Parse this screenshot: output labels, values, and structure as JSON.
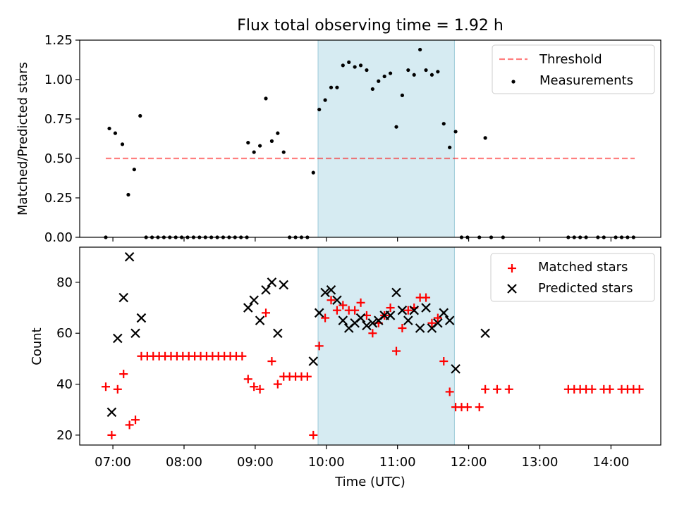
{
  "figure": {
    "title": "Flux total observing time = 1.92 h"
  },
  "chart_data": [
    {
      "type": "scatter",
      "panel": "top",
      "title": "Flux total observing time = 1.92 h",
      "ylabel": "Matched/Predicted stars",
      "xlabel": "",
      "xlim": [
        "06:32",
        "14:42"
      ],
      "ylim": [
        0,
        1.25
      ],
      "yticks": [
        0.0,
        0.25,
        0.5,
        0.75,
        1.0,
        1.25
      ],
      "ytick_labels": [
        "0.00",
        "0.25",
        "0.50",
        "0.75",
        "1.00",
        "1.25"
      ],
      "grid": false,
      "legend_position": "top-right",
      "highlight_span": {
        "x_start": "09:53",
        "x_end": "11:48",
        "color": "#add8e6"
      },
      "threshold": {
        "name": "Threshold",
        "value": 0.5,
        "x_start": "06:54",
        "x_end": "14:20",
        "color": "#ff0000",
        "style": "dashed"
      },
      "series": [
        {
          "name": "Measurements",
          "color": "#000000",
          "marker": "dot",
          "points": [
            [
              "06:54",
              0
            ],
            [
              "06:57",
              0.69
            ],
            [
              "07:02",
              0.66
            ],
            [
              "07:08",
              0.59
            ],
            [
              "07:13",
              0.27
            ],
            [
              "07:18",
              0.43
            ],
            [
              "07:23",
              0.77
            ],
            [
              "07:28",
              0
            ],
            [
              "07:33",
              0
            ],
            [
              "07:38",
              0
            ],
            [
              "07:43",
              0
            ],
            [
              "07:48",
              0
            ],
            [
              "07:53",
              0
            ],
            [
              "07:58",
              0
            ],
            [
              "08:03",
              0
            ],
            [
              "08:08",
              0
            ],
            [
              "08:13",
              0
            ],
            [
              "08:18",
              0
            ],
            [
              "08:23",
              0
            ],
            [
              "08:28",
              0
            ],
            [
              "08:33",
              0
            ],
            [
              "08:38",
              0
            ],
            [
              "08:43",
              0
            ],
            [
              "08:48",
              0
            ],
            [
              "08:53",
              0
            ],
            [
              "08:54",
              0.6
            ],
            [
              "08:59",
              0.54
            ],
            [
              "09:04",
              0.58
            ],
            [
              "09:09",
              0.88
            ],
            [
              "09:14",
              0.61
            ],
            [
              "09:19",
              0.66
            ],
            [
              "09:24",
              0.54
            ],
            [
              "09:29",
              0
            ],
            [
              "09:34",
              0
            ],
            [
              "09:39",
              0
            ],
            [
              "09:44",
              0
            ],
            [
              "09:49",
              0.41
            ],
            [
              "09:54",
              0.81
            ],
            [
              "09:59",
              0.87
            ],
            [
              "10:04",
              0.95
            ],
            [
              "10:09",
              0.95
            ],
            [
              "10:14",
              1.09
            ],
            [
              "10:19",
              1.11
            ],
            [
              "10:24",
              1.08
            ],
            [
              "10:29",
              1.09
            ],
            [
              "10:34",
              1.06
            ],
            [
              "10:39",
              0.94
            ],
            [
              "10:44",
              0.99
            ],
            [
              "10:49",
              1.02
            ],
            [
              "10:54",
              1.04
            ],
            [
              "10:59",
              0.7
            ],
            [
              "11:04",
              0.9
            ],
            [
              "11:09",
              1.06
            ],
            [
              "11:14",
              1.03
            ],
            [
              "11:19",
              1.19
            ],
            [
              "11:24",
              1.06
            ],
            [
              "11:29",
              1.03
            ],
            [
              "11:34",
              1.05
            ],
            [
              "11:39",
              0.72
            ],
            [
              "11:44",
              0.57
            ],
            [
              "11:49",
              0.67
            ],
            [
              "11:54",
              0
            ],
            [
              "11:59",
              0
            ],
            [
              "12:09",
              0
            ],
            [
              "12:14",
              0.63
            ],
            [
              "12:19",
              0
            ],
            [
              "12:29",
              0
            ],
            [
              "13:24",
              0
            ],
            [
              "13:29",
              0
            ],
            [
              "13:34",
              0
            ],
            [
              "13:39",
              0
            ],
            [
              "13:49",
              0
            ],
            [
              "13:54",
              0
            ],
            [
              "14:04",
              0
            ],
            [
              "14:09",
              0
            ],
            [
              "14:14",
              0
            ],
            [
              "14:19",
              0
            ]
          ]
        }
      ]
    },
    {
      "type": "scatter",
      "panel": "bottom",
      "title": "",
      "ylabel": "Count",
      "xlabel": "Time (UTC)",
      "xlim": [
        "06:32",
        "14:42"
      ],
      "ylim": [
        16.1,
        93.8
      ],
      "yticks": [
        20,
        40,
        60,
        80
      ],
      "ytick_labels": [
        "20",
        "40",
        "60",
        "80"
      ],
      "xticks": [
        "07:00",
        "08:00",
        "09:00",
        "10:00",
        "11:00",
        "12:00",
        "13:00",
        "14:00"
      ],
      "xtick_labels": [
        "07:00",
        "08:00",
        "09:00",
        "10:00",
        "11:00",
        "12:00",
        "13:00",
        "14:00"
      ],
      "grid": false,
      "legend_position": "top-right",
      "highlight_span": {
        "x_start": "09:53",
        "x_end": "11:48",
        "color": "#add8e6"
      },
      "series": [
        {
          "name": "Matched stars",
          "color": "#ff0000",
          "marker": "plus",
          "points": [
            [
              "06:54",
              39
            ],
            [
              "06:59",
              20
            ],
            [
              "07:04",
              38
            ],
            [
              "07:09",
              44
            ],
            [
              "07:14",
              24
            ],
            [
              "07:19",
              26
            ],
            [
              "07:24",
              51
            ],
            [
              "07:29",
              51
            ],
            [
              "07:34",
              51
            ],
            [
              "07:39",
              51
            ],
            [
              "07:44",
              51
            ],
            [
              "07:49",
              51
            ],
            [
              "07:54",
              51
            ],
            [
              "07:59",
              51
            ],
            [
              "08:04",
              51
            ],
            [
              "08:09",
              51
            ],
            [
              "08:14",
              51
            ],
            [
              "08:19",
              51
            ],
            [
              "08:24",
              51
            ],
            [
              "08:29",
              51
            ],
            [
              "08:34",
              51
            ],
            [
              "08:39",
              51
            ],
            [
              "08:44",
              51
            ],
            [
              "08:49",
              51
            ],
            [
              "08:54",
              42
            ],
            [
              "08:59",
              39
            ],
            [
              "09:04",
              38
            ],
            [
              "09:09",
              68
            ],
            [
              "09:14",
              49
            ],
            [
              "09:19",
              40
            ],
            [
              "09:24",
              43
            ],
            [
              "09:29",
              43
            ],
            [
              "09:34",
              43
            ],
            [
              "09:39",
              43
            ],
            [
              "09:44",
              43
            ],
            [
              "09:49",
              20
            ],
            [
              "09:54",
              55
            ],
            [
              "09:59",
              66
            ],
            [
              "10:04",
              73
            ],
            [
              "10:09",
              69
            ],
            [
              "10:14",
              71
            ],
            [
              "10:19",
              69
            ],
            [
              "10:24",
              69
            ],
            [
              "10:29",
              72
            ],
            [
              "10:34",
              67
            ],
            [
              "10:39",
              60
            ],
            [
              "10:44",
              64
            ],
            [
              "10:49",
              67
            ],
            [
              "10:54",
              70
            ],
            [
              "10:59",
              53
            ],
            [
              "11:04",
              62
            ],
            [
              "11:09",
              69
            ],
            [
              "11:14",
              70
            ],
            [
              "11:19",
              74
            ],
            [
              "11:24",
              74
            ],
            [
              "11:29",
              64
            ],
            [
              "11:34",
              66
            ],
            [
              "11:39",
              49
            ],
            [
              "11:44",
              37
            ],
            [
              "11:49",
              31
            ],
            [
              "11:54",
              31
            ],
            [
              "11:59",
              31
            ],
            [
              "12:09",
              31
            ],
            [
              "12:14",
              38
            ],
            [
              "12:24",
              38
            ],
            [
              "12:34",
              38
            ],
            [
              "13:24",
              38
            ],
            [
              "13:29",
              38
            ],
            [
              "13:34",
              38
            ],
            [
              "13:39",
              38
            ],
            [
              "13:44",
              38
            ],
            [
              "13:54",
              38
            ],
            [
              "13:59",
              38
            ],
            [
              "14:09",
              38
            ],
            [
              "14:14",
              38
            ],
            [
              "14:19",
              38
            ],
            [
              "14:24",
              38
            ]
          ]
        },
        {
          "name": "Predicted stars",
          "color": "#000000",
          "marker": "x",
          "points": [
            [
              "06:59",
              29
            ],
            [
              "07:04",
              58
            ],
            [
              "07:09",
              74
            ],
            [
              "07:14",
              90
            ],
            [
              "07:19",
              60
            ],
            [
              "07:24",
              66
            ],
            [
              "08:54",
              70
            ],
            [
              "08:59",
              73
            ],
            [
              "09:04",
              65
            ],
            [
              "09:09",
              77
            ],
            [
              "09:14",
              80
            ],
            [
              "09:19",
              60
            ],
            [
              "09:24",
              79
            ],
            [
              "09:49",
              49
            ],
            [
              "09:54",
              68
            ],
            [
              "09:59",
              76
            ],
            [
              "10:04",
              77
            ],
            [
              "10:09",
              73
            ],
            [
              "10:14",
              65
            ],
            [
              "10:19",
              62
            ],
            [
              "10:24",
              64
            ],
            [
              "10:29",
              66
            ],
            [
              "10:34",
              63
            ],
            [
              "10:39",
              64
            ],
            [
              "10:44",
              65
            ],
            [
              "10:49",
              67
            ],
            [
              "10:54",
              67
            ],
            [
              "10:59",
              76
            ],
            [
              "11:04",
              69
            ],
            [
              "11:09",
              65
            ],
            [
              "11:14",
              69
            ],
            [
              "11:19",
              62
            ],
            [
              "11:24",
              70
            ],
            [
              "11:29",
              62
            ],
            [
              "11:34",
              64
            ],
            [
              "11:39",
              68
            ],
            [
              "11:44",
              65
            ],
            [
              "11:49",
              46
            ],
            [
              "12:14",
              60
            ]
          ]
        }
      ]
    }
  ]
}
